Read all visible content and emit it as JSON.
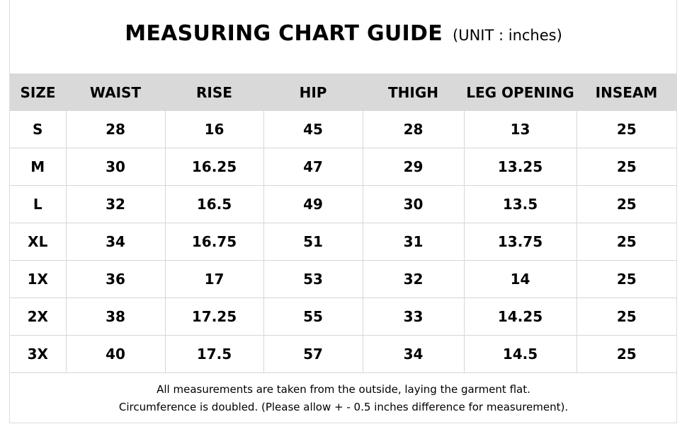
{
  "title": {
    "main": "MEASURING CHART GUIDE",
    "unit": "(UNIT : inches)"
  },
  "table": {
    "headers": [
      "SIZE",
      "WAIST",
      "RISE",
      "HIP",
      "THIGH",
      "LEG OPENING",
      "INSEAM"
    ],
    "rows": [
      [
        "S",
        "28",
        "16",
        "45",
        "28",
        "13",
        "25"
      ],
      [
        "M",
        "30",
        "16.25",
        "47",
        "29",
        "13.25",
        "25"
      ],
      [
        "L",
        "32",
        "16.5",
        "49",
        "30",
        "13.5",
        "25"
      ],
      [
        "XL",
        "34",
        "16.75",
        "51",
        "31",
        "13.75",
        "25"
      ],
      [
        "1X",
        "36",
        "17",
        "53",
        "32",
        "14",
        "25"
      ],
      [
        "2X",
        "38",
        "17.25",
        "55",
        "33",
        "14.25",
        "25"
      ],
      [
        "3X",
        "40",
        "17.5",
        "57",
        "34",
        "14.5",
        "25"
      ]
    ]
  },
  "notes": [
    "All measurements are taken from the outside, laying the garment flat.",
    "Circumference is doubled. (Please allow + - 0.5 inches difference for measurement)."
  ],
  "colors": {
    "header_background": "#d9d9d9",
    "grid_line": "#d6d6d6",
    "text": "#000000",
    "page_background": "#ffffff"
  }
}
